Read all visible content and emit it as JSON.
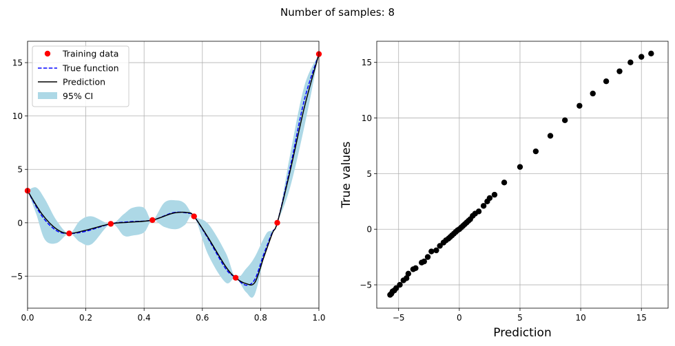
{
  "suptitle": "Number of samples: 8",
  "chart_data": [
    {
      "type": "line",
      "title": "",
      "xlabel": "",
      "ylabel": "",
      "xlim": [
        0,
        1
      ],
      "ylim": [
        -8,
        17
      ],
      "xticks": [
        "0.0",
        "0.2",
        "0.4",
        "0.6",
        "0.8",
        "1.0"
      ],
      "yticks": [
        "−5",
        "0",
        "5",
        "10",
        "15"
      ],
      "grid": true,
      "legend": {
        "position": "top-left",
        "entries": [
          "Training data",
          "True function",
          "Prediction",
          "95% CI"
        ]
      },
      "training_data": {
        "name": "Training data",
        "color": "#ff0000",
        "x": [
          0.0,
          0.1429,
          0.2857,
          0.4286,
          0.5714,
          0.7143,
          0.8571,
          1.0
        ],
        "y": [
          3.0,
          -1.0,
          -0.1,
          0.25,
          0.6,
          -5.15,
          0.0,
          15.8
        ]
      },
      "true_function": {
        "name": "True function",
        "color": "#0000ff",
        "x": [
          0.0,
          0.05,
          0.1,
          0.1429,
          0.2,
          0.2857,
          0.35,
          0.4286,
          0.5,
          0.55,
          0.5714,
          0.62,
          0.68,
          0.7143,
          0.75,
          0.78,
          0.81,
          0.84,
          0.8571,
          0.9,
          0.95,
          1.0
        ],
        "y": [
          3.0,
          0.6,
          -0.75,
          -1.0,
          -0.8,
          -0.1,
          0.1,
          0.25,
          0.95,
          0.9,
          0.6,
          -1.5,
          -4.3,
          -5.15,
          -5.85,
          -5.3,
          -3.0,
          -0.9,
          0.0,
          5.0,
          11.5,
          15.8
        ]
      },
      "prediction": {
        "name": "Prediction",
        "color": "#000000",
        "x": [
          0.0,
          0.05,
          0.1,
          0.1429,
          0.2,
          0.2857,
          0.35,
          0.4286,
          0.5,
          0.55,
          0.5714,
          0.62,
          0.68,
          0.7143,
          0.75,
          0.78,
          0.81,
          0.84,
          0.8571,
          0.9,
          0.95,
          1.0
        ],
        "y": [
          3.0,
          0.8,
          -0.6,
          -1.0,
          -0.7,
          -0.1,
          0.05,
          0.25,
          0.9,
          0.95,
          0.6,
          -1.4,
          -4.1,
          -5.15,
          -5.7,
          -5.6,
          -3.3,
          -1.0,
          0.0,
          4.7,
          10.8,
          15.8
        ]
      },
      "confidence_interval": {
        "name": "95% CI",
        "color": "#add8e6",
        "x": [
          0.0,
          0.03,
          0.06,
          0.1,
          0.1429,
          0.18,
          0.22,
          0.2857,
          0.33,
          0.36,
          0.4,
          0.4286,
          0.47,
          0.51,
          0.54,
          0.5714,
          0.62,
          0.68,
          0.7143,
          0.75,
          0.78,
          0.82,
          0.8571,
          0.9,
          0.95,
          1.0
        ],
        "upper": [
          3.0,
          3.3,
          2.2,
          0.2,
          -1.0,
          0.2,
          0.6,
          -0.1,
          0.8,
          1.4,
          1.4,
          0.25,
          1.9,
          2.1,
          1.8,
          0.6,
          -0.1,
          -2.8,
          -5.15,
          -4.3,
          -3.2,
          -1.0,
          0.0,
          6.2,
          12.8,
          15.8
        ],
        "lower": [
          3.0,
          0.8,
          -1.6,
          -1.9,
          -1.0,
          -1.8,
          -2.0,
          -0.1,
          -1.2,
          -1.2,
          -0.9,
          0.25,
          -0.4,
          -0.6,
          -0.2,
          0.6,
          -3.0,
          -5.6,
          -5.15,
          -6.5,
          -6.7,
          -2.3,
          0.0,
          3.2,
          9.0,
          15.8
        ]
      }
    },
    {
      "type": "scatter",
      "title": "",
      "xlabel": "Prediction",
      "ylabel": "True values",
      "xlim": [
        -6.8,
        17.2
      ],
      "ylim": [
        -7.1,
        16.9
      ],
      "xticks": [
        "−5",
        "0",
        "5",
        "10",
        "15"
      ],
      "yticks": [
        "−5",
        "0",
        "5",
        "10",
        "15"
      ],
      "grid": true,
      "color": "#000000",
      "series": [
        {
          "name": "points",
          "x": [
            -5.7,
            -5.6,
            -5.5,
            -5.35,
            -5.2,
            -4.9,
            -4.6,
            -4.35,
            -4.2,
            -3.8,
            -3.6,
            -3.1,
            -2.9,
            -2.6,
            -2.3,
            -1.9,
            -1.6,
            -1.3,
            -1.1,
            -0.9,
            -0.75,
            -0.6,
            -0.45,
            -0.3,
            -0.15,
            0.0,
            0.15,
            0.3,
            0.45,
            0.6,
            0.75,
            0.9,
            1.1,
            1.3,
            1.6,
            2.0,
            2.3,
            2.5,
            2.9,
            3.7,
            5.0,
            6.3,
            7.5,
            8.7,
            9.9,
            11.0,
            12.1,
            13.2,
            14.1,
            15.0,
            15.8
          ],
          "y": [
            -5.9,
            -5.8,
            -5.6,
            -5.5,
            -5.3,
            -5.0,
            -4.6,
            -4.4,
            -4.0,
            -3.6,
            -3.5,
            -3.0,
            -2.9,
            -2.5,
            -2.0,
            -1.9,
            -1.5,
            -1.2,
            -1.0,
            -0.85,
            -0.7,
            -0.55,
            -0.4,
            -0.25,
            -0.1,
            0.0,
            0.15,
            0.3,
            0.45,
            0.6,
            0.75,
            0.9,
            1.2,
            1.4,
            1.6,
            2.1,
            2.5,
            2.8,
            3.1,
            4.2,
            5.6,
            7.0,
            8.4,
            9.8,
            11.1,
            12.2,
            13.3,
            14.2,
            15.0,
            15.5,
            15.8
          ]
        }
      ]
    }
  ]
}
